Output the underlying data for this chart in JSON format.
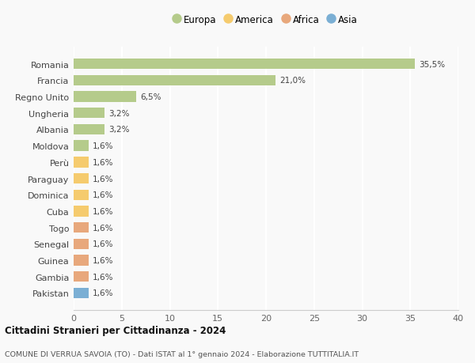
{
  "countries": [
    "Romania",
    "Francia",
    "Regno Unito",
    "Ungheria",
    "Albania",
    "Moldova",
    "Perù",
    "Paraguay",
    "Dominica",
    "Cuba",
    "Togo",
    "Senegal",
    "Guinea",
    "Gambia",
    "Pakistan"
  ],
  "values": [
    35.5,
    21.0,
    6.5,
    3.2,
    3.2,
    1.6,
    1.6,
    1.6,
    1.6,
    1.6,
    1.6,
    1.6,
    1.6,
    1.6,
    1.6
  ],
  "labels": [
    "35,5%",
    "21,0%",
    "6,5%",
    "3,2%",
    "3,2%",
    "1,6%",
    "1,6%",
    "1,6%",
    "1,6%",
    "1,6%",
    "1,6%",
    "1,6%",
    "1,6%",
    "1,6%",
    "1,6%"
  ],
  "continents": [
    "Europa",
    "Europa",
    "Europa",
    "Europa",
    "Europa",
    "Europa",
    "America",
    "America",
    "America",
    "America",
    "Africa",
    "Africa",
    "Africa",
    "Africa",
    "Asia"
  ],
  "continent_colors": {
    "Europa": "#b5cb8b",
    "America": "#f5cb6e",
    "Africa": "#e8a87c",
    "Asia": "#7bafd4"
  },
  "legend_order": [
    "Europa",
    "America",
    "Africa",
    "Asia"
  ],
  "title": "Cittadini Stranieri per Cittadinanza - 2024",
  "subtitle": "COMUNE DI VERRUA SAVOIA (TO) - Dati ISTAT al 1° gennaio 2024 - Elaborazione TUTTITALIA.IT",
  "xlim": [
    0,
    40
  ],
  "xticks": [
    0,
    5,
    10,
    15,
    20,
    25,
    30,
    35,
    40
  ],
  "background_color": "#f9f9f9",
  "grid_color": "#ffffff",
  "bar_height": 0.65
}
